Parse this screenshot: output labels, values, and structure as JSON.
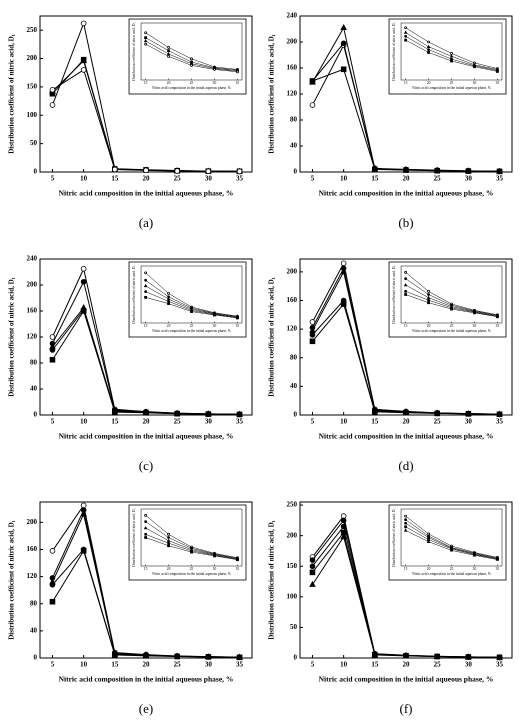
{
  "chart_data": [
    {
      "type": "line",
      "caption": "(a)",
      "xlabel": "Nitric acid composition in the initial aqueous phase, %",
      "ylabel": "Distribution coefficient of nitric acid, D₁",
      "x": [
        5,
        10,
        15,
        20,
        25,
        30,
        35
      ],
      "xlim": [
        3,
        37
      ],
      "xticks": [
        5,
        10,
        15,
        20,
        25,
        30,
        35
      ],
      "ylim": [
        0,
        275
      ],
      "yticks": [
        0,
        50,
        100,
        150,
        200,
        250
      ],
      "series": [
        {
          "marker": "circle-open",
          "color": "#000000",
          "values": [
            118,
            262,
            5.8,
            4.0,
            2.6,
            1.6,
            1.3
          ]
        },
        {
          "marker": "square",
          "color": "#000000",
          "values": [
            138,
            198,
            5.2,
            3.6,
            2.2,
            1.5,
            1.2
          ]
        },
        {
          "marker": "triangle",
          "color": "#000000",
          "values": [
            142,
            196,
            4.8,
            3.2,
            2.0,
            1.4,
            1.1
          ]
        },
        {
          "marker": "circle-open",
          "color": "#000000",
          "values": [
            145,
            180,
            4.4,
            2.9,
            1.8,
            1.3,
            1.0
          ]
        }
      ],
      "inset": {
        "xlabel": "Nitric acid composition in the initial aqueous phase, %",
        "ylabel": "Distribution coefficient of nitric acid, D₁",
        "xlim": [
          14,
          36
        ],
        "ylim": [
          0,
          7
        ],
        "xticks": [
          15,
          20,
          25,
          30,
          35
        ]
      }
    },
    {
      "type": "line",
      "caption": "(b)",
      "xlabel": "Nitric acid composition in the initial aqueous phase, %",
      "ylabel": "Distribution coefficient of nitric acid, D₁",
      "x": [
        5,
        10,
        15,
        20,
        25,
        30,
        35
      ],
      "xlim": [
        3,
        37
      ],
      "xticks": [
        5,
        10,
        15,
        20,
        25,
        30,
        35
      ],
      "ylim": [
        0,
        240
      ],
      "yticks": [
        0,
        40,
        80,
        120,
        160,
        200,
        240
      ],
      "series": [
        {
          "marker": "circle-open",
          "color": "#000000",
          "values": [
            103,
            195,
            5.5,
            4.0,
            2.8,
            1.8,
            1.2
          ]
        },
        {
          "marker": "triangle",
          "color": "#000000",
          "values": [
            138,
            222,
            5.0,
            3.5,
            2.5,
            1.6,
            1.1
          ]
        },
        {
          "marker": "circle",
          "color": "#000000",
          "values": [
            140,
            198,
            4.6,
            3.2,
            2.2,
            1.5,
            1.0
          ]
        },
        {
          "marker": "square",
          "color": "#000000",
          "values": [
            140,
            158,
            4.2,
            2.9,
            2.0,
            1.4,
            0.9
          ]
        }
      ],
      "inset": {
        "xlabel": "Nitric acid composition in the initial aqueous phase, %",
        "ylabel": "Distribution coefficient of nitric acid, D₁",
        "xlim": [
          14,
          36
        ],
        "ylim": [
          0,
          6
        ],
        "xticks": [
          15,
          20,
          25,
          30,
          35
        ]
      }
    },
    {
      "type": "line",
      "caption": "(c)",
      "xlabel": "Nitric acid composition in the initial aqueous phase, %",
      "ylabel": "Distribution coefficient of nitric acid, D₁",
      "x": [
        5,
        10,
        15,
        20,
        25,
        30,
        35
      ],
      "xlim": [
        3,
        37
      ],
      "xticks": [
        5,
        10,
        15,
        20,
        25,
        30,
        35
      ],
      "ylim": [
        0,
        240
      ],
      "yticks": [
        0,
        40,
        80,
        120,
        160,
        200,
        240
      ],
      "series": [
        {
          "marker": "circle-open",
          "color": "#000000",
          "values": [
            120,
            225,
            8.8,
            5.2,
            2.8,
            1.8,
            1.2
          ]
        },
        {
          "marker": "circle",
          "color": "#000000",
          "values": [
            110,
            205,
            7.5,
            4.6,
            2.6,
            1.7,
            1.1
          ]
        },
        {
          "marker": "triangle",
          "color": "#000000",
          "values": [
            105,
            165,
            6.5,
            4.2,
            2.4,
            1.6,
            1.0
          ]
        },
        {
          "marker": "circle",
          "color": "#000000",
          "values": [
            100,
            162,
            5.5,
            3.8,
            2.2,
            1.5,
            0.9
          ]
        },
        {
          "marker": "square",
          "color": "#000000",
          "values": [
            85,
            160,
            4.5,
            3.4,
            2.0,
            1.4,
            0.9
          ]
        }
      ],
      "inset": {
        "xlabel": "Nitric acid composition in the initial aqueous phase, %",
        "ylabel": "Distribution coefficient of nitric acid, D₁",
        "xlim": [
          14,
          36
        ],
        "ylim": [
          0,
          10
        ],
        "xticks": [
          15,
          20,
          25,
          30,
          35
        ]
      }
    },
    {
      "type": "line",
      "caption": "(d)",
      "xlabel": "Nitric acid composition in the initial aqueous phase, %",
      "ylabel": "Distribution coefficient of nitric acid, D₁",
      "x": [
        5,
        10,
        15,
        20,
        25,
        30,
        35
      ],
      "xlim": [
        3,
        37
      ],
      "xticks": [
        5,
        10,
        15,
        20,
        25,
        30,
        35
      ],
      "ylim": [
        0,
        218
      ],
      "yticks": [
        0,
        40,
        80,
        120,
        160,
        200
      ],
      "series": [
        {
          "marker": "circle-open",
          "color": "#000000",
          "values": [
            130,
            212,
            8,
            5,
            3,
            2,
            1.3
          ]
        },
        {
          "marker": "circle",
          "color": "#000000",
          "values": [
            122,
            205,
            7,
            4.5,
            2.8,
            1.9,
            1.2
          ]
        },
        {
          "marker": "triangle",
          "color": "#000000",
          "values": [
            118,
            200,
            6,
            4,
            2.6,
            1.8,
            1.1
          ]
        },
        {
          "marker": "circle",
          "color": "#000000",
          "values": [
            112,
            160,
            5,
            3.6,
            2.4,
            1.7,
            1.0
          ]
        },
        {
          "marker": "square",
          "color": "#000000",
          "values": [
            103,
            155,
            4.5,
            3.2,
            2.2,
            1.6,
            1.0
          ]
        }
      ],
      "inset": {
        "xlabel": "Nitric acid composition in the initial aqueous phase, %",
        "ylabel": "Distribution coefficient of nitric acid, D₁",
        "xlim": [
          14,
          36
        ],
        "ylim": [
          0,
          9
        ],
        "xticks": [
          15,
          20,
          25,
          30,
          35
        ]
      }
    },
    {
      "type": "line",
      "caption": "(e)",
      "xlabel": "Nitric acid composition in the initial aqueous phase, %",
      "ylabel": "Distribution coefficient of nitric acid, D₁",
      "x": [
        5,
        10,
        15,
        20,
        25,
        30,
        35
      ],
      "xlim": [
        3,
        37
      ],
      "xticks": [
        5,
        10,
        15,
        20,
        25,
        30,
        35
      ],
      "ylim": [
        0,
        230
      ],
      "yticks": [
        0,
        40,
        80,
        120,
        160,
        200
      ],
      "series": [
        {
          "marker": "circle-open",
          "color": "#000000",
          "values": [
            158,
            225,
            8,
            5,
            3,
            2,
            1.3
          ]
        },
        {
          "marker": "circle",
          "color": "#000000",
          "values": [
            118,
            218,
            7,
            4.5,
            2.8,
            1.9,
            1.2
          ]
        },
        {
          "marker": "triangle",
          "color": "#000000",
          "values": [
            112,
            212,
            6,
            4,
            2.6,
            1.8,
            1.1
          ]
        },
        {
          "marker": "circle",
          "color": "#000000",
          "values": [
            108,
            160,
            5,
            3.6,
            2.4,
            1.7,
            1.0
          ]
        },
        {
          "marker": "square",
          "color": "#000000",
          "values": [
            83,
            158,
            4.5,
            3.2,
            2.2,
            1.6,
            1.0
          ]
        }
      ],
      "inset": {
        "xlabel": "Nitric acid composition in the initial aqueous phase, %",
        "ylabel": "Distribution coefficient of nitric acid, D₁",
        "xlim": [
          14,
          36
        ],
        "ylim": [
          0,
          9
        ],
        "xticks": [
          15,
          20,
          25,
          30,
          35
        ]
      }
    },
    {
      "type": "line",
      "caption": "(f)",
      "xlabel": "Nitric acid composition in the initial aqueous phase, %",
      "ylabel": "Distribution coefficient of nitric acid, D₁",
      "x": [
        5,
        10,
        15,
        20,
        25,
        30,
        35
      ],
      "xlim": [
        3,
        37
      ],
      "xticks": [
        5,
        10,
        15,
        20,
        25,
        30,
        35
      ],
      "ylim": [
        0,
        255
      ],
      "yticks": [
        0,
        50,
        100,
        150,
        200,
        250
      ],
      "series": [
        {
          "marker": "circle-open",
          "color": "#000000",
          "values": [
            165,
            232,
            7,
            4.5,
            2.8,
            1.9,
            1.2
          ]
        },
        {
          "marker": "circle",
          "color": "#000000",
          "values": [
            160,
            225,
            6.5,
            4.2,
            2.6,
            1.8,
            1.1
          ]
        },
        {
          "marker": "circle",
          "color": "#000000",
          "values": [
            150,
            215,
            6,
            4,
            2.5,
            1.7,
            1.0
          ]
        },
        {
          "marker": "square",
          "color": "#000000",
          "values": [
            140,
            205,
            5.5,
            3.7,
            2.4,
            1.6,
            1.0
          ]
        },
        {
          "marker": "triangle",
          "color": "#000000",
          "values": [
            120,
            198,
            5,
            3.4,
            2.2,
            1.5,
            0.9
          ]
        }
      ],
      "inset": {
        "xlabel": "Nitric acid composition in the initial aqueous phase, %",
        "ylabel": "Distribution coefficient of nitric acid, D₁",
        "xlim": [
          14,
          36
        ],
        "ylim": [
          0,
          8
        ],
        "xticks": [
          15,
          20,
          25,
          30,
          35
        ]
      }
    }
  ]
}
